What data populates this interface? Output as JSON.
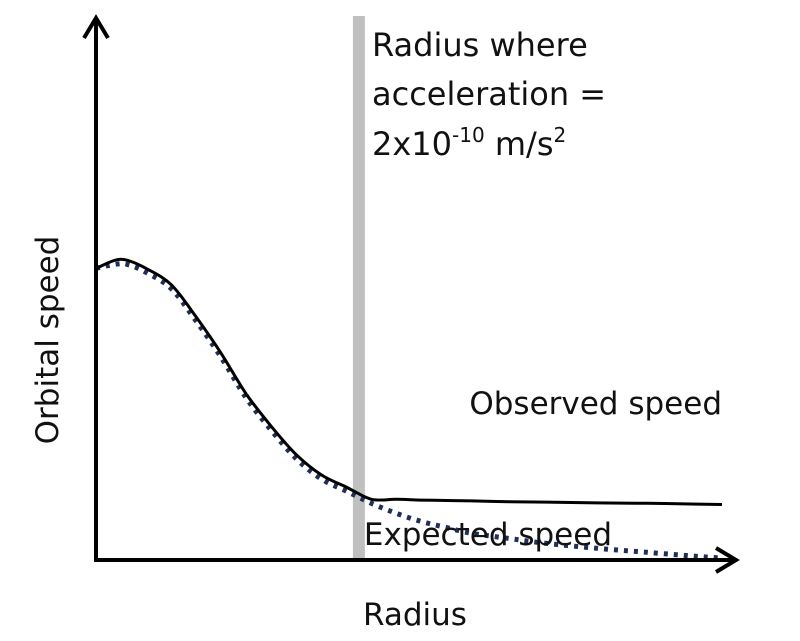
{
  "chart_data": {
    "type": "line",
    "xlabel": "Radius",
    "ylabel": "Orbital speed",
    "xlim": [
      0,
      100
    ],
    "ylim": [
      0,
      100
    ],
    "ticks_shown": false,
    "grid": false,
    "series": [
      {
        "name": "Observed speed",
        "style": "solid",
        "color": "#000000",
        "x": [
          0,
          3,
          5,
          8,
          12,
          16,
          20,
          24,
          28,
          32,
          36,
          40,
          44,
          48,
          52,
          56,
          60,
          66,
          72,
          80,
          88,
          96,
          100
        ],
        "y": [
          72,
          74,
          74,
          72,
          68,
          60,
          51,
          41,
          33,
          26,
          21,
          18,
          15,
          15,
          14.8,
          14.7,
          14.6,
          14.4,
          14.3,
          14.1,
          14.0,
          13.8,
          13.7
        ]
      },
      {
        "name": "Expected speed",
        "style": "dotted",
        "color": "#1f2f55",
        "x": [
          0,
          3,
          5,
          8,
          12,
          16,
          20,
          24,
          28,
          32,
          36,
          40,
          44,
          48,
          52,
          56,
          60,
          66,
          72,
          80,
          88,
          96,
          100
        ],
        "y": [
          72,
          73,
          73,
          71,
          67,
          59,
          50,
          40,
          32,
          25,
          20,
          17,
          14,
          11.5,
          9.5,
          8,
          6.6,
          5.3,
          4.1,
          2.9,
          1.9,
          0.9,
          0.5
        ]
      }
    ],
    "marker": {
      "label_lines": [
        "Radius where",
        "acceleration ="
      ],
      "formula": {
        "base": "2x10",
        "exp": "-10",
        "unit_base": " m/s",
        "unit_exp": "2"
      },
      "x": 42,
      "color": "#c0c0c0"
    },
    "annotations": {
      "observed": "Observed speed",
      "expected": "Expected speed"
    }
  }
}
